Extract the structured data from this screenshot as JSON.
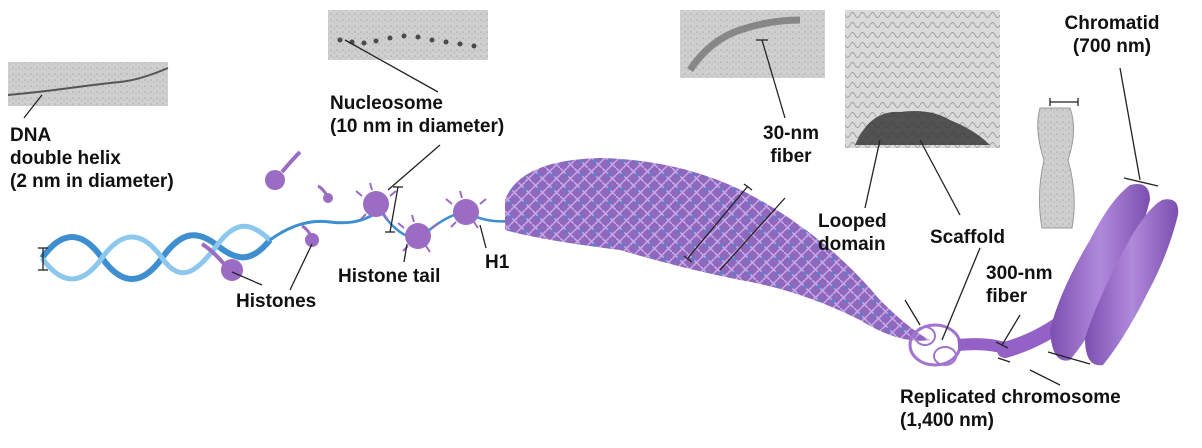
{
  "labels": {
    "dna_line1": "DNA",
    "dna_line2": "double helix",
    "dna_line3": "(2 nm in diameter)",
    "nucleosome_line1": "Nucleosome",
    "nucleosome_line2": "(10 nm in diameter)",
    "histones": "Histones",
    "histone_tail": "Histone tail",
    "h1": "H1",
    "fiber30_line1": "30-nm",
    "fiber30_line2": "fiber",
    "looped_line1": "Looped",
    "looped_line2": "domain",
    "scaffold": "Scaffold",
    "fiber300_line1": "300-nm",
    "fiber300_line2": "fiber",
    "chromatid_line1": "Chromatid",
    "chromatid_line2": "(700 nm)",
    "replicated_line1": "Replicated chromosome",
    "replicated_line2": "(1,400 nm)"
  },
  "colors": {
    "dna_blue": "#3d8fd0",
    "dna_light": "#8cc7ee",
    "histone_purple": "#9b6cc4",
    "fiber_purple": "#8a63b8",
    "chromosome_purple": "#9462c6",
    "micrograph_gray": "#c9c9c9"
  }
}
